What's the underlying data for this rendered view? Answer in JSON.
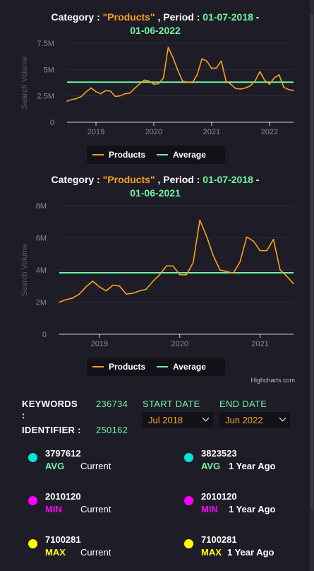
{
  "charts": [
    {
      "title_prefix": "Category : ",
      "category": "\"Products\"",
      "period_label": " , Period : ",
      "period_start": "01-07-2018",
      "period_sep": " - ",
      "period_end": "01-06-2022",
      "ylabel": "Search Volume",
      "yticks": [
        "0",
        "2.5M",
        "5M",
        "7.5M"
      ],
      "xticks": [
        "2019",
        "2020",
        "2021",
        "2022"
      ],
      "legend": {
        "series": "Products",
        "average": "Average"
      }
    },
    {
      "title_prefix": "Category : ",
      "category": "\"Products\"",
      "period_label": " , Period : ",
      "period_start": "01-07-2018",
      "period_sep": " - ",
      "period_end": "01-06-2021",
      "ylabel": "Search Volume",
      "yticks": [
        "0",
        "2M",
        "4M",
        "6M",
        "8M"
      ],
      "xticks": [
        "2019",
        "2020",
        "2021"
      ],
      "legend": {
        "series": "Products",
        "average": "Average"
      },
      "credits": "Highcharts.com"
    }
  ],
  "colors": {
    "series": "#f7a21b",
    "average": "#6ef5a1",
    "bg": "#1e1d27",
    "grid": "#ffffff",
    "min": "#ff00ff",
    "max": "#ffff00",
    "avg": "#00e5d4"
  },
  "chart_data": [
    {
      "type": "line",
      "xlabel": "",
      "ylabel": "Search Volume",
      "ylim": [
        0,
        7500000
      ],
      "x_start": "2018-07",
      "x_end": "2022-06",
      "grid": true,
      "legend_position": "bottom-center",
      "series": [
        {
          "name": "Products",
          "values": [
            2000000,
            2150000,
            2250000,
            2450000,
            2900000,
            3250000,
            2900000,
            2700000,
            3000000,
            2950000,
            2450000,
            2500000,
            2700000,
            2750000,
            3200000,
            3600000,
            4000000,
            3900000,
            3600000,
            3650000,
            4200000,
            7100000,
            6100000,
            4900000,
            3900000,
            3800000,
            3750000,
            4500000,
            6000000,
            5800000,
            5100000,
            5150000,
            5800000,
            3900000,
            3600000,
            3200000,
            3150000,
            3250000,
            3450000,
            3900000,
            4800000,
            4000000,
            3600000,
            4200000,
            4500000,
            3300000,
            3100000,
            3000000
          ]
        },
        {
          "name": "Average",
          "values": [
            3797612
          ]
        }
      ]
    },
    {
      "type": "line",
      "xlabel": "",
      "ylabel": "Search Volume",
      "ylim": [
        0,
        8000000
      ],
      "x_start": "2018-07",
      "x_end": "2021-06",
      "grid": true,
      "legend_position": "bottom-center",
      "series": [
        {
          "name": "Products",
          "values": [
            2000000,
            2150000,
            2250000,
            2500000,
            2950000,
            3300000,
            2950000,
            2700000,
            3050000,
            3000000,
            2500000,
            2550000,
            2700000,
            2800000,
            3300000,
            3700000,
            4250000,
            4250000,
            3700000,
            3700000,
            4450000,
            7100000,
            6100000,
            4900000,
            4000000,
            3900000,
            3800000,
            4500000,
            6050000,
            5800000,
            5200000,
            5200000,
            5900000,
            4000000,
            3600000,
            3150000
          ]
        },
        {
          "name": "Average",
          "values": [
            3823523
          ]
        }
      ]
    }
  ],
  "summary": {
    "keywords_label": "KEYWORDS",
    "keywords_colon": ":",
    "keywords_value": "236734",
    "identifier_label": "IDENTIFIER :",
    "identifier_value": "250162",
    "start_date_label": "START DATE",
    "end_date_label": "END DATE",
    "start_date_value": "Jul 2018",
    "end_date_value": "Jun 2022"
  },
  "metrics": [
    {
      "value": "3797612",
      "label": "AVG",
      "period": "Current"
    },
    {
      "value": "3823523",
      "label": "AVG",
      "period": "1 Year Ago"
    },
    {
      "value": "2010120",
      "label": "MIN",
      "period": "Current"
    },
    {
      "value": "2010120",
      "label": "MIN",
      "period": "1 Year Ago"
    },
    {
      "value": "7100281",
      "label": "MAX",
      "period": "Current"
    },
    {
      "value": "7100281",
      "label": "MAX",
      "period": "1 Year Ago"
    }
  ]
}
